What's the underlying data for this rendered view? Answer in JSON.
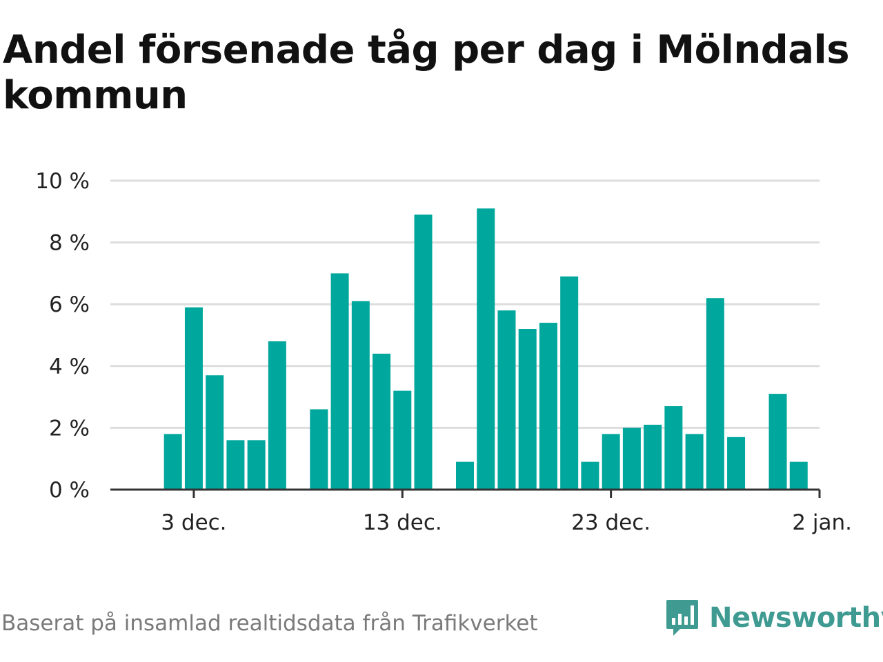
{
  "title": "Andel försenade tåg per dag i Mölndals kommun",
  "source": "Baserat på insamlad realtidsdata från Trafikverket",
  "logo": {
    "text": "Newsworthy",
    "icon": "newsworthy-logo-icon",
    "color": "#3f9b92"
  },
  "colors": {
    "bar": "#00a79d",
    "grid": "#dddddd",
    "axis": "#333333",
    "text": "#222222"
  },
  "chart_data": {
    "type": "bar",
    "title": "Andel försenade tåg per dag i Mölndals kommun",
    "xlabel": "",
    "ylabel": "",
    "ylim": [
      0,
      10
    ],
    "y_ticks": [
      0,
      2,
      4,
      6,
      8,
      10
    ],
    "y_tick_labels": [
      "0 %",
      "2 %",
      "4 %",
      "6 %",
      "8 %",
      "10 %"
    ],
    "x_tick_labels": [
      {
        "label": "3 dec.",
        "date": "2023-12-03"
      },
      {
        "label": "13 dec.",
        "date": "2023-12-13"
      },
      {
        "label": "23 dec.",
        "date": "2023-12-23"
      },
      {
        "label": "2 jan.",
        "date": "2024-01-02"
      }
    ],
    "x_range": [
      "2023-11-29",
      "2024-01-02"
    ],
    "grid": true,
    "series": [
      {
        "points": [
          {
            "date": "2023-12-02",
            "value": 1.8
          },
          {
            "date": "2023-12-03",
            "value": 5.9
          },
          {
            "date": "2023-12-04",
            "value": 3.7
          },
          {
            "date": "2023-12-05",
            "value": 1.6
          },
          {
            "date": "2023-12-06",
            "value": 1.6
          },
          {
            "date": "2023-12-07",
            "value": 4.8
          },
          {
            "date": "2023-12-09",
            "value": 2.6
          },
          {
            "date": "2023-12-10",
            "value": 7.0
          },
          {
            "date": "2023-12-11",
            "value": 6.1
          },
          {
            "date": "2023-12-12",
            "value": 4.4
          },
          {
            "date": "2023-12-13",
            "value": 3.2
          },
          {
            "date": "2023-12-14",
            "value": 8.9
          },
          {
            "date": "2023-12-16",
            "value": 0.9
          },
          {
            "date": "2023-12-17",
            "value": 9.1
          },
          {
            "date": "2023-12-18",
            "value": 5.8
          },
          {
            "date": "2023-12-19",
            "value": 5.2
          },
          {
            "date": "2023-12-20",
            "value": 5.4
          },
          {
            "date": "2023-12-21",
            "value": 6.9
          },
          {
            "date": "2023-12-22",
            "value": 0.9
          },
          {
            "date": "2023-12-23",
            "value": 1.8
          },
          {
            "date": "2023-12-24",
            "value": 2.0
          },
          {
            "date": "2023-12-25",
            "value": 2.1
          },
          {
            "date": "2023-12-26",
            "value": 2.7
          },
          {
            "date": "2023-12-27",
            "value": 1.8
          },
          {
            "date": "2023-12-28",
            "value": 6.2
          },
          {
            "date": "2023-12-29",
            "value": 1.7
          },
          {
            "date": "2023-12-31",
            "value": 3.1
          },
          {
            "date": "2024-01-01",
            "value": 0.9
          }
        ]
      }
    ]
  }
}
